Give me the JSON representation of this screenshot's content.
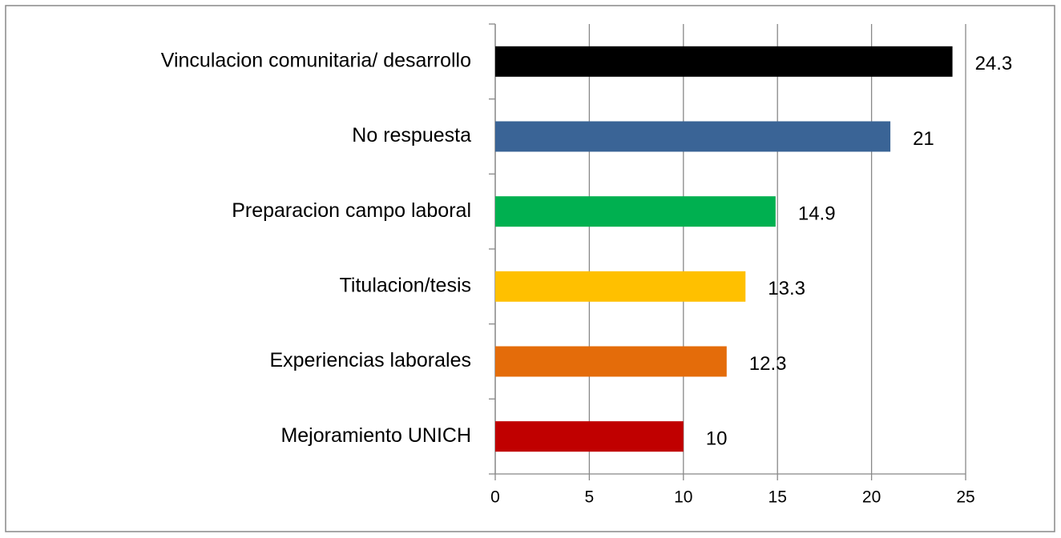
{
  "chart_data": {
    "type": "barh",
    "categories": [
      "Vinculacion comunitaria/ desarrollo",
      "No respuesta",
      "Preparacion campo laboral",
      "Titulacion/tesis",
      "Experiencias laborales",
      "Mejoramiento UNICH"
    ],
    "values": [
      24.3,
      21,
      14.9,
      13.3,
      12.3,
      10
    ],
    "colors": [
      "#000000",
      "#3a6496",
      "#00b050",
      "#ffc000",
      "#e46c0a",
      "#c00000"
    ],
    "xlim": [
      0,
      25
    ],
    "xticks": [
      0,
      5,
      10,
      15,
      20,
      25
    ],
    "grid": true
  }
}
